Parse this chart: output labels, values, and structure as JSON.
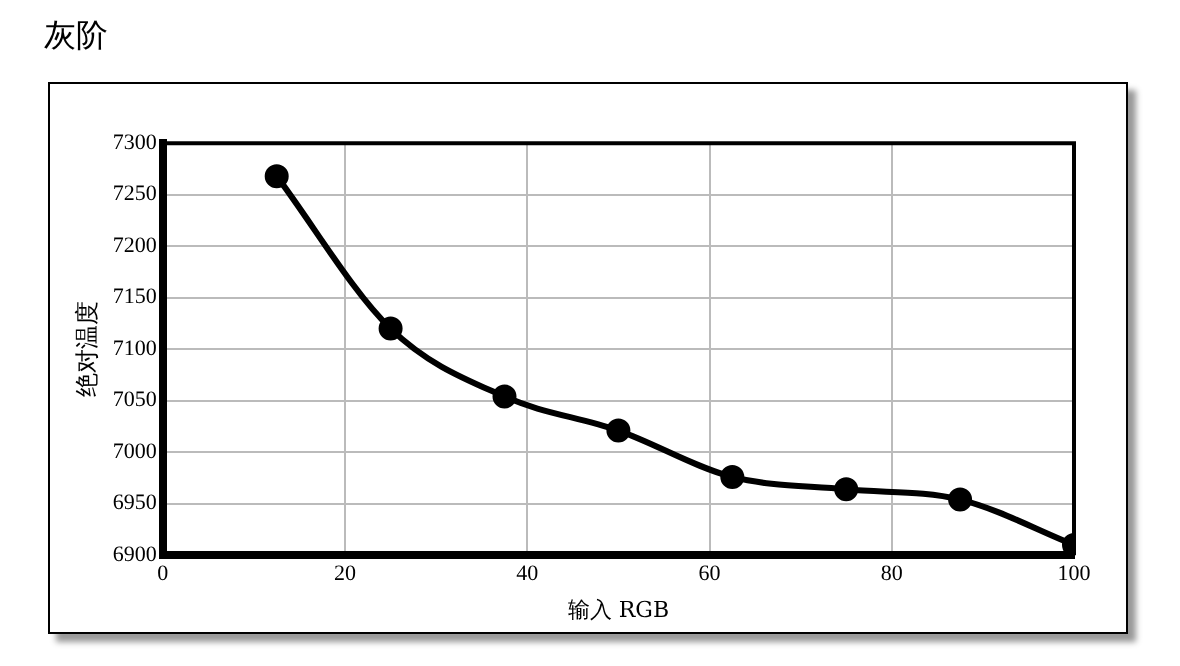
{
  "chart_data": {
    "type": "line",
    "title": "灰阶",
    "xlabel": "输入 RGB",
    "ylabel": "绝对温度",
    "x": [
      12.5,
      25,
      37.5,
      50,
      62.5,
      75,
      87.5,
      100
    ],
    "series": [
      {
        "color": "#000000",
        "values": [
          7268,
          7120,
          7054,
          7021,
          6976,
          6964,
          6954,
          6910
        ]
      }
    ],
    "xlim": [
      0,
      100
    ],
    "xticks": [
      0,
      20,
      40,
      60,
      80,
      100
    ],
    "ylim": [
      6900,
      7300
    ],
    "yticks": [
      6900,
      6950,
      7000,
      7050,
      7100,
      7150,
      7200,
      7250,
      7300
    ],
    "grid": true,
    "legend": false,
    "marker": "circle",
    "line_style": "solid"
  }
}
